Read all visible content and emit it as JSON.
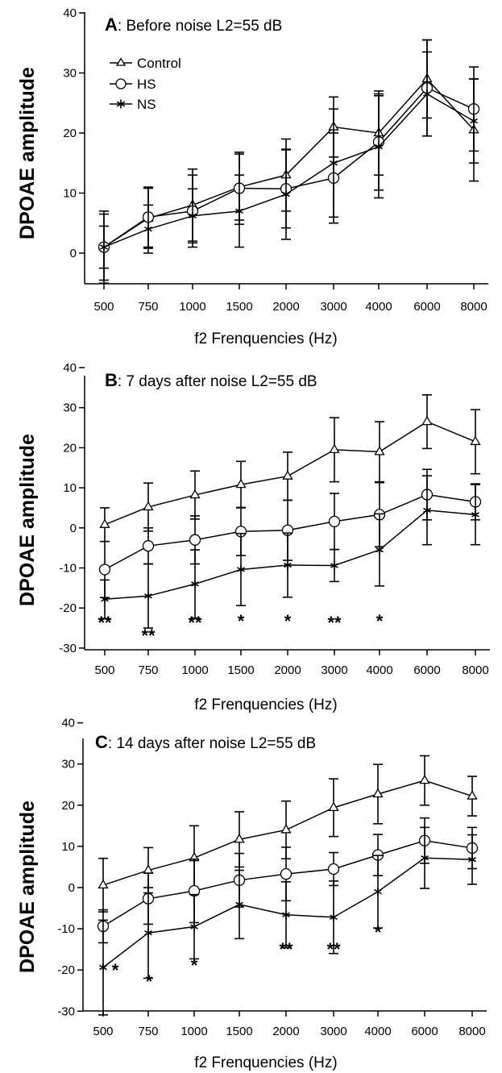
{
  "chart_data": [
    {
      "type": "line",
      "title_letter": "A",
      "title": ": Before noise L2=55 dB",
      "xlabel": "f2 Frenquencies (Hz)",
      "ylabel": "DPOAE amplitude",
      "categories": [
        "500",
        "750",
        "1000",
        "1500",
        "2000",
        "3000",
        "4000",
        "6000",
        "8000"
      ],
      "ylim": [
        -5,
        40
      ],
      "yticks": [
        0,
        10,
        20,
        30,
        40
      ],
      "legend": [
        "Control",
        "HS",
        "NS"
      ],
      "series": [
        {
          "name": "Control",
          "marker": "triangle",
          "values": [
            1,
            5.8,
            8,
            11,
            13,
            21,
            20,
            29,
            20.5
          ],
          "errors": [
            5.5,
            5,
            6,
            5.5,
            6,
            5,
            7,
            6.5,
            8.5
          ]
        },
        {
          "name": "HS",
          "marker": "circle",
          "values": [
            1,
            6,
            7,
            10.8,
            10.7,
            12.5,
            18.5,
            27.5,
            24
          ],
          "errors": [
            6,
            5,
            6,
            6,
            6.5,
            7.5,
            8,
            8,
            7
          ]
        },
        {
          "name": "NS",
          "marker": "star",
          "values": [
            1,
            4,
            6.2,
            7,
            9.8,
            15,
            17.7,
            26.5,
            22
          ],
          "errors": [
            3.5,
            4,
            4.5,
            6,
            7.5,
            9,
            8.5,
            7,
            7
          ]
        }
      ],
      "significance": []
    },
    {
      "type": "line",
      "title_letter": "B",
      "title": ": 7 days after noise L2=55 dB",
      "xlabel": "f2 Frenquencies (Hz)",
      "ylabel": "DPOAE amplitude",
      "categories": [
        "500",
        "750",
        "1000",
        "1500",
        "2000",
        "3000",
        "4000",
        "6000",
        "8000"
      ],
      "ylim": [
        -32,
        41
      ],
      "yticks": [
        -30,
        -20,
        -10,
        0,
        10,
        20,
        30,
        40
      ],
      "series": [
        {
          "name": "Control",
          "marker": "triangle",
          "values": [
            0.8,
            5.2,
            8.2,
            10.8,
            12.9,
            19.5,
            19,
            26.5,
            21.5
          ],
          "errors": [
            4.2,
            6,
            6,
            5.8,
            6,
            8,
            7.5,
            6.7,
            8
          ]
        },
        {
          "name": "HS",
          "marker": "circle",
          "values": [
            -10.4,
            -4.5,
            -3,
            -0.9,
            -0.6,
            1.6,
            3.3,
            8.3,
            6.5
          ],
          "errors": [
            7,
            4.5,
            6,
            6,
            7.5,
            7,
            8,
            6.3,
            4.5
          ]
        },
        {
          "name": "NS",
          "marker": "star",
          "values": [
            -17.8,
            -17,
            -14,
            -10.4,
            -9.3,
            -9.4,
            -5.5,
            4.4,
            3.3
          ],
          "errors": [
            4.8,
            8,
            8.5,
            9,
            8,
            4,
            9,
            8.6,
            7.5
          ]
        }
      ],
      "significance": [
        "**",
        "**",
        "**",
        "*",
        "*",
        "**",
        "*",
        "",
        ""
      ]
    },
    {
      "type": "line",
      "title_letter": "C",
      "title": ": 14 days after noise L2=55 dB",
      "xlabel": "f2 Frenquencies (Hz)",
      "ylabel": "DPOAE amplitude",
      "categories": [
        "500",
        "750",
        "1000",
        "1500",
        "2000",
        "3000",
        "4000",
        "6000",
        "8000"
      ],
      "ylim": [
        -32,
        41
      ],
      "yticks": [
        -30,
        -20,
        -10,
        0,
        10,
        20,
        30,
        40
      ],
      "series": [
        {
          "name": "Control",
          "marker": "triangle",
          "values": [
            0.6,
            4.2,
            7.2,
            11.7,
            14,
            19.4,
            22.7,
            26,
            22.2
          ],
          "errors": [
            6.5,
            5.5,
            7.8,
            6.7,
            7,
            7,
            7.2,
            6,
            4.8
          ]
        },
        {
          "name": "HS",
          "marker": "circle",
          "values": [
            -9.4,
            -2.7,
            -0.8,
            1.8,
            3.3,
            4.5,
            7.9,
            11.4,
            9.6
          ],
          "errors": [
            4,
            6.2,
            7.7,
            6.5,
            6.5,
            4,
            5,
            5.5,
            5
          ]
        },
        {
          "name": "NS",
          "marker": "star",
          "values": [
            -19.4,
            -11,
            -9.5,
            -4.1,
            -6.6,
            -7.2,
            -1,
            7.2,
            6.8
          ],
          "errors": [
            11.5,
            11,
            7.8,
            8.3,
            8,
            8.8,
            8.8,
            7.4,
            6
          ]
        }
      ],
      "significance": [
        "*",
        "*",
        "*",
        "",
        "**",
        "**",
        "*",
        "",
        ""
      ]
    }
  ]
}
